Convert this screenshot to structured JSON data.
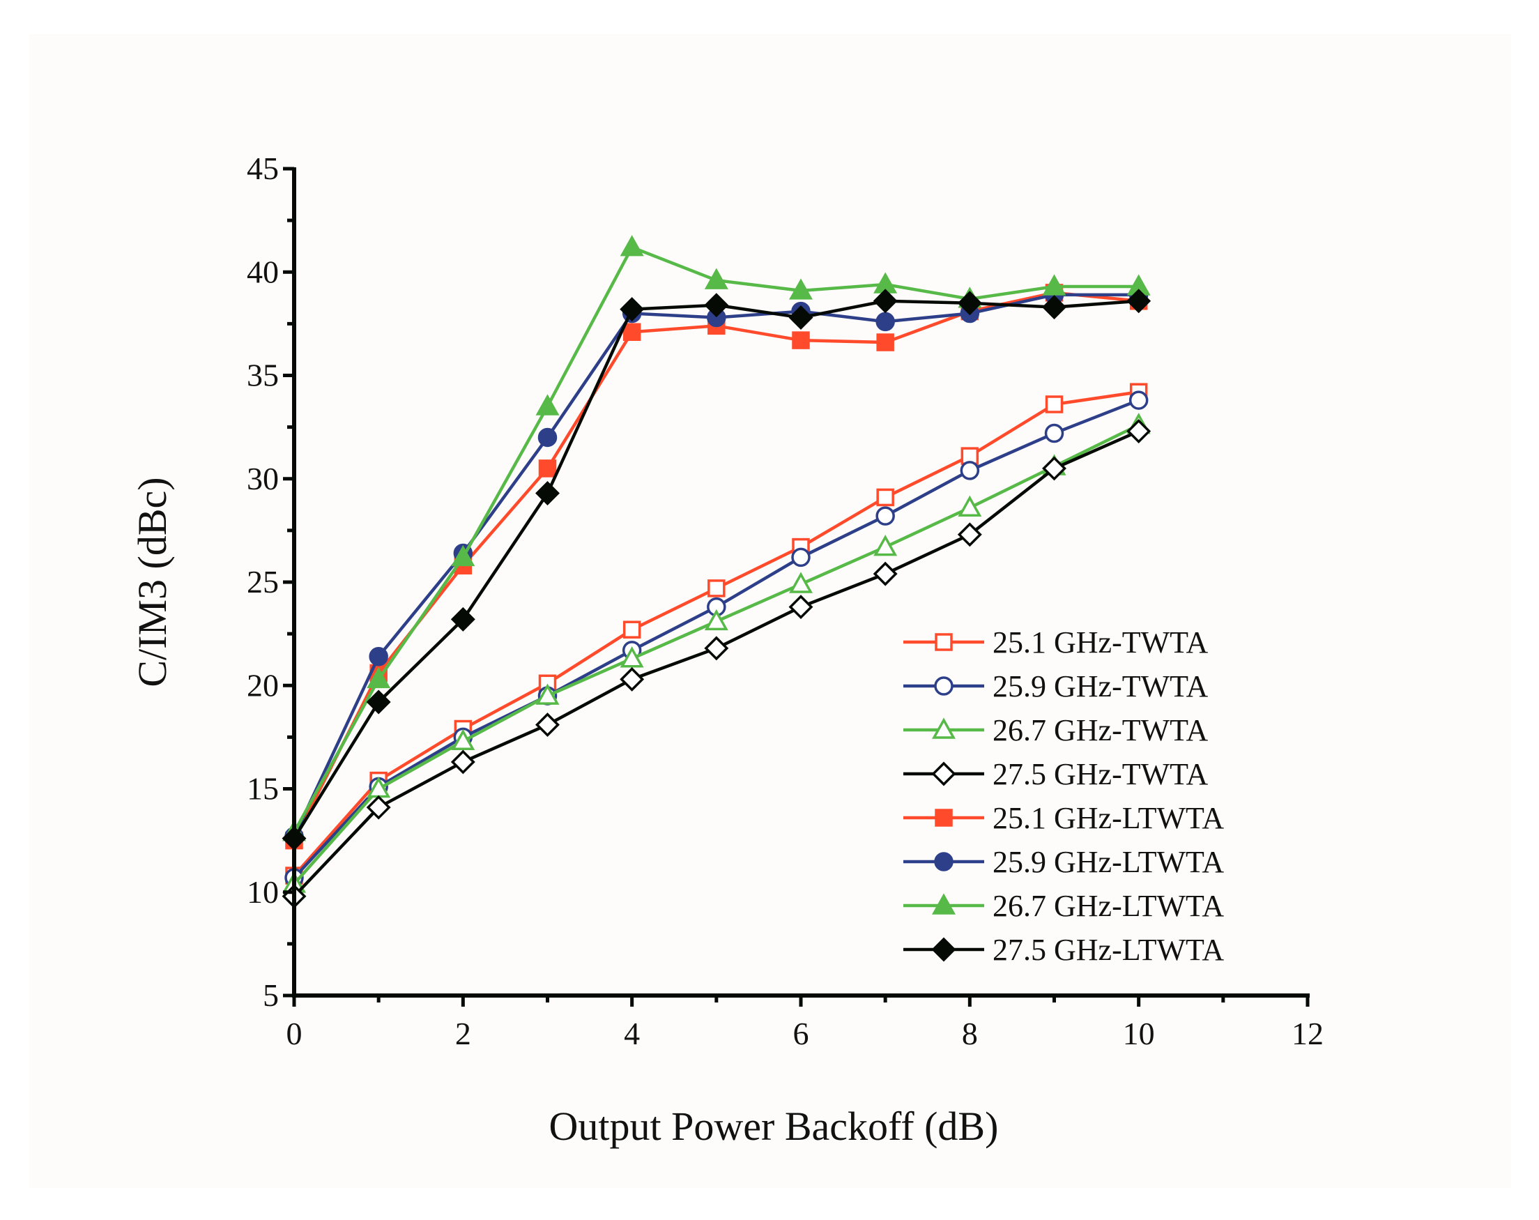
{
  "chart_data": {
    "type": "line",
    "title": "",
    "xlabel": "Output Power Backoff (dB)",
    "ylabel": "C/IM3 (dBc)",
    "xlim": [
      0,
      12
    ],
    "ylim": [
      5,
      45
    ],
    "xticks": [
      0,
      2,
      4,
      6,
      8,
      10,
      12
    ],
    "yticks": [
      5,
      10,
      15,
      20,
      25,
      30,
      35,
      40,
      45
    ],
    "grid": false,
    "legend_position": "bottom-right",
    "x": [
      0,
      1,
      2,
      3,
      4,
      5,
      6,
      7,
      8,
      9,
      10
    ],
    "series": [
      {
        "name": "25.1 GHz-TWTA",
        "color": "#FF4B2B",
        "marker": "square",
        "filled": false,
        "values": [
          10.8,
          15.4,
          17.9,
          20.1,
          22.7,
          24.7,
          26.7,
          29.1,
          31.1,
          33.6,
          34.2
        ]
      },
      {
        "name": "25.9 GHz-TWTA",
        "color": "#2E3F8A",
        "marker": "circle",
        "filled": false,
        "values": [
          10.7,
          15.1,
          17.5,
          19.5,
          21.7,
          23.8,
          26.2,
          28.2,
          30.4,
          32.2,
          33.8
        ]
      },
      {
        "name": "26.7 GHz-TWTA",
        "color": "#57B947",
        "marker": "triangle",
        "filled": false,
        "values": [
          10.4,
          15.0,
          17.3,
          19.5,
          21.3,
          23.1,
          24.9,
          26.7,
          28.6,
          30.6,
          32.6
        ]
      },
      {
        "name": "27.5 GHz-TWTA",
        "color": "#060A05",
        "marker": "diamond",
        "filled": false,
        "values": [
          9.8,
          14.1,
          16.3,
          18.1,
          20.3,
          21.8,
          23.8,
          25.4,
          27.3,
          30.5,
          32.3
        ]
      },
      {
        "name": "25.1 GHz-LTWTA",
        "color": "#FF4B2B",
        "marker": "square",
        "filled": true,
        "values": [
          12.5,
          20.6,
          25.8,
          30.5,
          37.1,
          37.4,
          36.7,
          36.6,
          38.1,
          39.0,
          38.6
        ]
      },
      {
        "name": "25.9 GHz-LTWTA",
        "color": "#2E3F8A",
        "marker": "circle",
        "filled": true,
        "values": [
          12.7,
          21.4,
          26.4,
          32.0,
          38.0,
          37.8,
          38.1,
          37.6,
          38.0,
          38.9,
          38.9
        ]
      },
      {
        "name": "26.7 GHz-LTWTA",
        "color": "#57B947",
        "marker": "triangle",
        "filled": true,
        "values": [
          12.9,
          20.3,
          26.2,
          33.5,
          41.2,
          39.6,
          39.1,
          39.4,
          38.7,
          39.3,
          39.3
        ]
      },
      {
        "name": "27.5 GHz-LTWTA",
        "color": "#060A05",
        "marker": "diamond",
        "filled": true,
        "values": [
          12.6,
          19.2,
          23.2,
          29.3,
          38.2,
          38.4,
          37.8,
          38.6,
          38.5,
          38.3,
          38.6
        ]
      }
    ]
  }
}
